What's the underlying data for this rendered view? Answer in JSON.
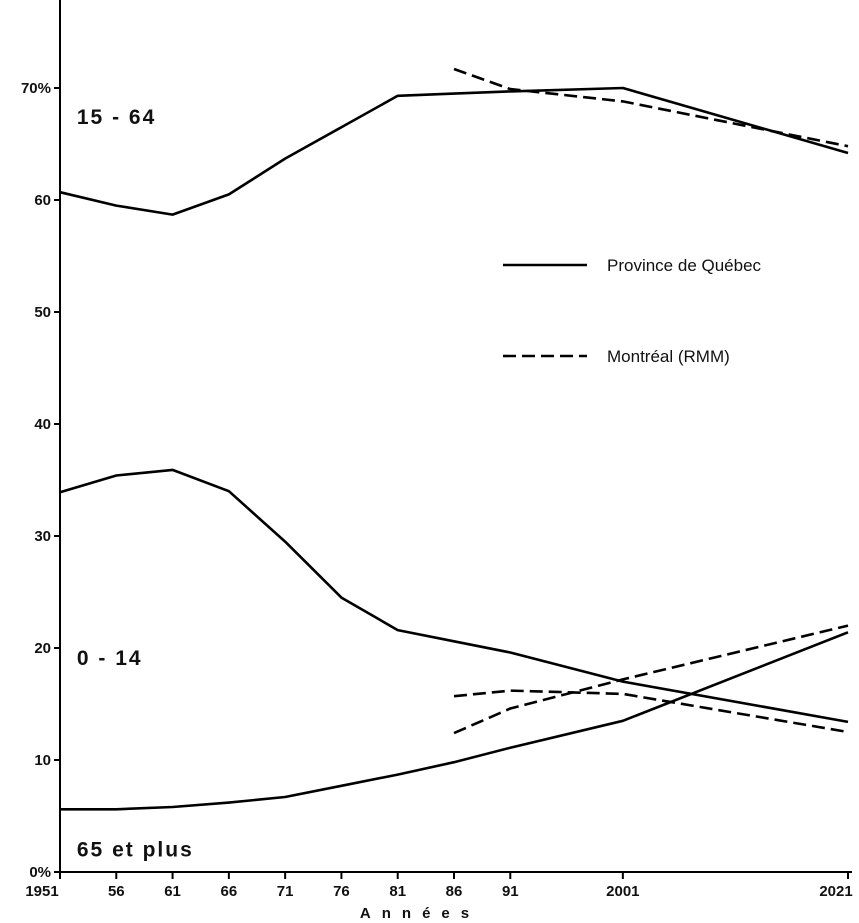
{
  "chart_data": {
    "type": "line",
    "xlabel": "Années",
    "ylabel": "",
    "x": [
      1951,
      1956,
      1961,
      1966,
      1971,
      1976,
      1981,
      1986,
      1991,
      2001,
      2021
    ],
    "x_tick_labels": [
      "1951",
      "56",
      "61",
      "66",
      "71",
      "76",
      "81",
      "86",
      "91",
      "2001",
      "2021"
    ],
    "y_ticks": [
      {
        "value": 0,
        "label": "0%"
      },
      {
        "value": 10,
        "label": "10"
      },
      {
        "value": 20,
        "label": "20"
      },
      {
        "value": 30,
        "label": "30"
      },
      {
        "value": 40,
        "label": "40"
      },
      {
        "value": 50,
        "label": "50"
      },
      {
        "value": 60,
        "label": "60"
      },
      {
        "value": 70,
        "label": "70%"
      }
    ],
    "ylim": [
      0,
      75
    ],
    "grid": false,
    "legend": {
      "placement": "right",
      "entries": [
        {
          "label": "Province de Québec",
          "style": "solid"
        },
        {
          "label": "Montréal (RMM)",
          "style": "dashed"
        }
      ]
    },
    "group_labels": [
      {
        "text": "15 - 64",
        "x": 1952.5,
        "y": 66.8
      },
      {
        "text": "0 - 14",
        "x": 1952.5,
        "y": 18.5
      },
      {
        "text": "65 et plus",
        "x": 1952.5,
        "y": 1.4
      }
    ],
    "series": [
      {
        "group": "15 - 64",
        "style": "solid",
        "points": [
          [
            1951,
            60.7
          ],
          [
            1956,
            59.5
          ],
          [
            1961,
            58.7
          ],
          [
            1966,
            60.5
          ],
          [
            1971,
            63.7
          ],
          [
            1976,
            66.5
          ],
          [
            1981,
            69.3
          ],
          [
            1986,
            69.5
          ],
          [
            1991,
            69.7
          ],
          [
            2001,
            70.0
          ],
          [
            2021,
            64.2
          ]
        ]
      },
      {
        "group": "15 - 64",
        "style": "dashed",
        "points": [
          [
            1986,
            71.7
          ],
          [
            1991,
            69.9
          ],
          [
            2001,
            68.8
          ],
          [
            2021,
            64.8
          ]
        ]
      },
      {
        "group": "0 - 14",
        "style": "solid",
        "points": [
          [
            1951,
            33.9
          ],
          [
            1956,
            35.4
          ],
          [
            1961,
            35.9
          ],
          [
            1966,
            34.0
          ],
          [
            1971,
            29.5
          ],
          [
            1976,
            24.5
          ],
          [
            1981,
            21.6
          ],
          [
            1986,
            20.6
          ],
          [
            1991,
            19.6
          ],
          [
            2001,
            17.0
          ],
          [
            2021,
            13.4
          ]
        ]
      },
      {
        "group": "0 - 14",
        "style": "dashed",
        "points": [
          [
            1986,
            15.7
          ],
          [
            1991,
            16.2
          ],
          [
            2001,
            15.9
          ],
          [
            2021,
            12.5
          ]
        ]
      },
      {
        "group": "65 et plus",
        "style": "solid",
        "points": [
          [
            1951,
            5.6
          ],
          [
            1956,
            5.6
          ],
          [
            1961,
            5.8
          ],
          [
            1966,
            6.2
          ],
          [
            1971,
            6.7
          ],
          [
            1976,
            7.7
          ],
          [
            1981,
            8.7
          ],
          [
            1986,
            9.8
          ],
          [
            1991,
            11.1
          ],
          [
            2001,
            13.5
          ],
          [
            2021,
            21.4
          ]
        ]
      },
      {
        "group": "65 et plus",
        "style": "dashed",
        "points": [
          [
            1986,
            12.4
          ],
          [
            1991,
            14.6
          ],
          [
            2001,
            17.2
          ],
          [
            2021,
            22.0
          ]
        ]
      }
    ]
  }
}
